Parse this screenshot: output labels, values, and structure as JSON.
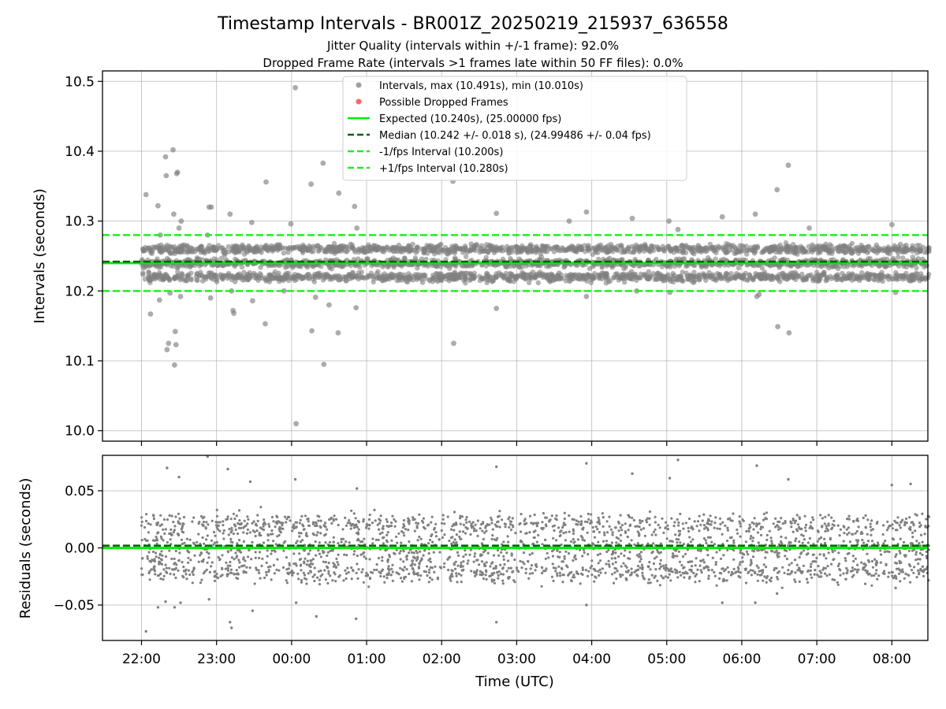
{
  "chart_data": {
    "type": "scatter",
    "title": "Timestamp Intervals - BR001Z_20250219_215937_636558",
    "subtitle_lines": [
      "Jitter Quality (intervals within +/-1 frame): 92.0%",
      "Dropped Frame Rate (intervals >1 frames late within 50 FF files): 0.0%"
    ],
    "xlabel": "Time (UTC)",
    "x_ticks": [
      "22:00",
      "23:00",
      "00:00",
      "01:00",
      "02:00",
      "03:00",
      "04:00",
      "05:00",
      "06:00",
      "07:00",
      "08:00"
    ],
    "x_range_hours_since_2200": [
      -0.52,
      10.48
    ],
    "grid": true,
    "colors": {
      "points": "#808080",
      "dropped": "#ff4444",
      "expected": "#00ee00",
      "median": "#006400",
      "bounds": "#22ee22"
    },
    "top_panel": {
      "ylabel": "Intervals (seconds)",
      "ylim": [
        9.985,
        10.515
      ],
      "y_ticks": [
        "10.0",
        "10.1",
        "10.2",
        "10.3",
        "10.4",
        "10.5"
      ],
      "y_tick_values": [
        10.0,
        10.1,
        10.2,
        10.3,
        10.4,
        10.5
      ],
      "expected": 10.24,
      "median": 10.242,
      "minus_one_fps": 10.2,
      "plus_one_fps": 10.28,
      "max_interval": 10.491,
      "min_interval": 10.01,
      "dense_band_levels": [
        10.22,
        10.24,
        10.26
      ],
      "dense_band_spread": 0.018,
      "outliers": [
        [
          0.06,
          10.338
        ],
        [
          0.12,
          10.167
        ],
        [
          0.22,
          10.322
        ],
        [
          0.24,
          10.187
        ],
        [
          0.25,
          10.28
        ],
        [
          0.32,
          10.392
        ],
        [
          0.33,
          10.365
        ],
        [
          0.34,
          10.116
        ],
        [
          0.36,
          10.125
        ],
        [
          0.38,
          10.197
        ],
        [
          0.42,
          10.402
        ],
        [
          0.43,
          10.31
        ],
        [
          0.44,
          10.094
        ],
        [
          0.45,
          10.142
        ],
        [
          0.46,
          10.123
        ],
        [
          0.47,
          10.368
        ],
        [
          0.48,
          10.37
        ],
        [
          0.5,
          10.29
        ],
        [
          0.52,
          10.192
        ],
        [
          0.53,
          10.3
        ],
        [
          0.9,
          10.32
        ],
        [
          0.93,
          10.32
        ],
        [
          0.92,
          10.19
        ],
        [
          0.88,
          10.28
        ],
        [
          1.18,
          10.31
        ],
        [
          1.2,
          10.2
        ],
        [
          1.22,
          10.172
        ],
        [
          1.23,
          10.168
        ],
        [
          1.48,
          10.186
        ],
        [
          1.47,
          10.298
        ],
        [
          1.66,
          10.356
        ],
        [
          1.65,
          10.153
        ],
        [
          1.9,
          10.2
        ],
        [
          1.99,
          10.296
        ],
        [
          2.05,
          10.491
        ],
        [
          2.06,
          10.01
        ],
        [
          2.26,
          10.353
        ],
        [
          2.27,
          10.143
        ],
        [
          2.32,
          10.191
        ],
        [
          2.42,
          10.383
        ],
        [
          2.43,
          10.095
        ],
        [
          2.5,
          10.18
        ],
        [
          2.62,
          10.14
        ],
        [
          2.63,
          10.34
        ],
        [
          2.84,
          10.321
        ],
        [
          2.86,
          10.176
        ],
        [
          2.87,
          10.29
        ],
        [
          4.15,
          10.357
        ],
        [
          4.16,
          10.125
        ],
        [
          4.73,
          10.311
        ],
        [
          4.73,
          10.175
        ],
        [
          5.7,
          10.3
        ],
        [
          5.93,
          10.313
        ],
        [
          5.93,
          10.192
        ],
        [
          6.54,
          10.304
        ],
        [
          6.6,
          10.2
        ],
        [
          7.03,
          10.3
        ],
        [
          7.04,
          10.198
        ],
        [
          7.15,
          10.288
        ],
        [
          7.74,
          10.306
        ],
        [
          8.18,
          10.31
        ],
        [
          8.2,
          10.192
        ],
        [
          8.23,
          10.195
        ],
        [
          8.47,
          10.345
        ],
        [
          8.48,
          10.149
        ],
        [
          8.62,
          10.38
        ],
        [
          8.63,
          10.14
        ],
        [
          8.9,
          10.29
        ],
        [
          10.0,
          10.295
        ],
        [
          10.05,
          10.198
        ]
      ]
    },
    "bottom_panel": {
      "ylabel": "Residuals (seconds)",
      "ylim": [
        -0.081,
        0.081
      ],
      "y_ticks": [
        "−0.05",
        "0.00",
        "0.05"
      ],
      "y_tick_values": [
        -0.05,
        0.0,
        0.05
      ],
      "expected": 0.0,
      "median": 0.002,
      "dense_band_levels": [
        -0.02,
        0.0,
        0.02
      ],
      "dense_band_spread": 0.02,
      "outliers": [
        [
          0.06,
          -0.073
        ],
        [
          0.22,
          -0.052
        ],
        [
          0.32,
          -0.047
        ],
        [
          0.34,
          0.07
        ],
        [
          0.44,
          -0.052
        ],
        [
          0.5,
          0.062
        ],
        [
          0.52,
          -0.048
        ],
        [
          0.9,
          -0.045
        ],
        [
          0.88,
          0.08
        ],
        [
          1.18,
          -0.065
        ],
        [
          1.2,
          -0.07
        ],
        [
          1.15,
          0.069
        ],
        [
          1.48,
          -0.055
        ],
        [
          1.45,
          0.058
        ],
        [
          2.05,
          0.06
        ],
        [
          2.06,
          -0.048
        ],
        [
          2.33,
          -0.06
        ],
        [
          2.86,
          -0.062
        ],
        [
          2.87,
          0.052
        ],
        [
          4.73,
          -0.065
        ],
        [
          4.73,
          0.071
        ],
        [
          5.93,
          0.074
        ],
        [
          5.93,
          -0.05
        ],
        [
          6.54,
          0.065
        ],
        [
          7.74,
          -0.048
        ],
        [
          7.04,
          0.061
        ],
        [
          7.15,
          0.077
        ],
        [
          8.18,
          -0.048
        ],
        [
          8.2,
          0.072
        ],
        [
          8.47,
          -0.04
        ],
        [
          8.62,
          0.06
        ],
        [
          10.0,
          0.055
        ],
        [
          10.05,
          -0.035
        ],
        [
          10.25,
          0.056
        ]
      ]
    }
  },
  "legend": {
    "placement": "upper-center",
    "items": [
      {
        "label": "Intervals, max (10.491s), min (10.010s)",
        "marker": "dot",
        "color": "#a0a0a0"
      },
      {
        "label": "Possible Dropped Frames",
        "marker": "dot",
        "color": "#ff6666"
      },
      {
        "label": "Expected (10.240s), (25.00000 fps)",
        "marker": "solid",
        "color": "#00ee00"
      },
      {
        "label": "Median (10.242 +/- 0.018 s), (24.99486 +/- 0.04 fps)",
        "marker": "dashed",
        "color": "#006400"
      },
      {
        "label": "-1/fps Interval (10.200s)",
        "marker": "dashed",
        "color": "#22ee22"
      },
      {
        "label": "+1/fps Interval (10.280s)",
        "marker": "dashed",
        "color": "#22ee22"
      }
    ]
  }
}
